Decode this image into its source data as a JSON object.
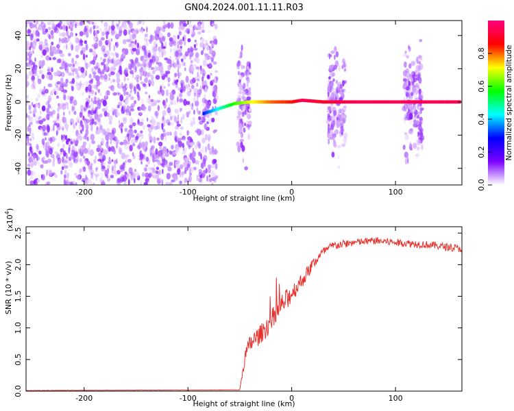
{
  "title": "GN04.2024.001.11.11.R03",
  "chart_data": [
    {
      "type": "heatmap",
      "xlabel": "Height of straight line (km)",
      "ylabel": "Frequency (Hz)",
      "xlim": [
        -256,
        164
      ],
      "ylim": [
        -50,
        49
      ],
      "x_ticks": [
        -200,
        -100,
        0,
        100
      ],
      "y_ticks": [
        -40,
        -20,
        0,
        20,
        40
      ],
      "colorbar": {
        "label": "Normalized spectral amplitude",
        "range": [
          0.0,
          1.0
        ],
        "ticks": [
          0.0,
          0.2,
          0.4,
          0.6,
          0.8
        ],
        "tick_labels": [
          "0.0",
          "0.2",
          "0.4",
          "0.6",
          "0.8"
        ],
        "colors": [
          "#ffffff",
          "#7b00ff",
          "#0000ff",
          "#00ffff",
          "#00ff00",
          "#ffff00",
          "#ff0000",
          "#ff0080"
        ]
      },
      "regions": [
        {
          "x_range": [
            -256,
            -72
          ],
          "freq_range": [
            -50,
            49
          ],
          "amplitude": 0.1,
          "pattern": "broadband noise"
        },
        {
          "x_range": [
            -52,
            -40
          ],
          "freq_range": [
            -45,
            45
          ],
          "amplitude": 0.1,
          "pattern": "burst"
        },
        {
          "x_range": [
            35,
            52
          ],
          "freq_range": [
            -45,
            45
          ],
          "amplitude": 0.1,
          "pattern": "burst"
        },
        {
          "x_range": [
            108,
            126
          ],
          "freq_range": [
            -45,
            45
          ],
          "amplitude": 0.1,
          "pattern": "burst"
        }
      ],
      "carrier_line": [
        {
          "x": -85,
          "freq": -7,
          "amplitude": 0.3
        },
        {
          "x": -75,
          "freq": -5,
          "amplitude": 0.4
        },
        {
          "x": -65,
          "freq": -3,
          "amplitude": 0.5
        },
        {
          "x": -55,
          "freq": -1,
          "amplitude": 0.6
        },
        {
          "x": -40,
          "freq": 0,
          "amplitude": 0.7
        },
        {
          "x": -20,
          "freq": 0,
          "amplitude": 0.8
        },
        {
          "x": 0,
          "freq": 0,
          "amplitude": 0.85
        },
        {
          "x": 10,
          "freq": 1,
          "amplitude": 0.95
        },
        {
          "x": 30,
          "freq": 0,
          "amplitude": 0.9
        },
        {
          "x": 60,
          "freq": 0,
          "amplitude": 0.95
        },
        {
          "x": 100,
          "freq": 0,
          "amplitude": 0.95
        },
        {
          "x": 164,
          "freq": 0,
          "amplitude": 0.95
        }
      ]
    },
    {
      "type": "line",
      "xlabel": "Height of straight line (km)",
      "ylabel": "SNR (10 * v/v)",
      "y_multiplier": "(x10",
      "y_multiplier_exp": "4",
      "xlim": [
        -256,
        164
      ],
      "ylim": [
        0,
        2.6
      ],
      "x_ticks": [
        -200,
        -100,
        0,
        100
      ],
      "y_ticks": [
        0.0,
        0.5,
        1.0,
        1.5,
        2.0,
        2.5
      ],
      "y_tick_labels": [
        "0.0",
        "0.5",
        "1.0",
        "1.5",
        "2.0",
        "2.5"
      ],
      "color": "#e8302c",
      "x": [
        -256,
        -50,
        -45,
        -40,
        -30,
        -20,
        -10,
        0,
        10,
        20,
        30,
        40,
        60,
        80,
        100,
        120,
        140,
        164
      ],
      "y": [
        0.01,
        0.02,
        0.55,
        0.75,
        0.9,
        1.1,
        1.35,
        1.55,
        1.75,
        2.0,
        2.2,
        2.3,
        2.35,
        2.38,
        2.35,
        2.33,
        2.3,
        2.25
      ],
      "noise": [
        0.003,
        0.003,
        0.12,
        0.15,
        0.15,
        0.18,
        0.18,
        0.15,
        0.12,
        0.1,
        0.07,
        0.07,
        0.06,
        0.06,
        0.06,
        0.06,
        0.06,
        0.06
      ]
    }
  ]
}
